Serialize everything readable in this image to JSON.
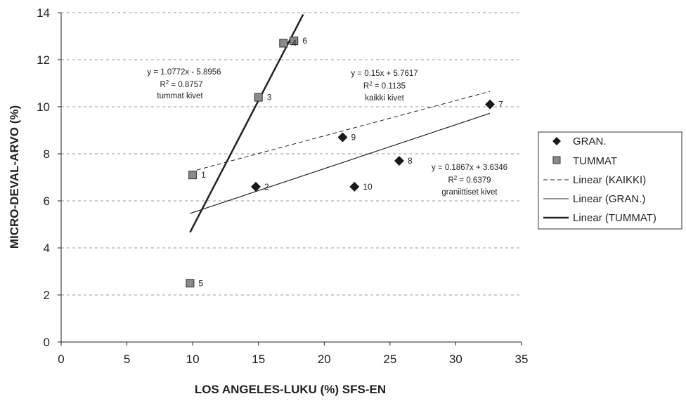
{
  "chart_data": {
    "type": "scatter",
    "xlabel": "LOS ANGELES-LUKU (%) SFS-EN",
    "ylabel": "MICRO-DEVAL-ARVO (%)",
    "xlim": [
      0,
      35
    ],
    "ylim": [
      0,
      14
    ],
    "xticks": [
      "0",
      "5",
      "10",
      "15",
      "20",
      "25",
      "30",
      "35"
    ],
    "yticks": [
      "0",
      "2",
      "4",
      "6",
      "8",
      "10",
      "12",
      "14"
    ],
    "grid": "horizontal dashed",
    "legend_position": "right",
    "series": [
      {
        "name": "GRAN.",
        "marker": "diamond",
        "points": [
          {
            "x": 14.8,
            "y": 6.6,
            "label": "2"
          },
          {
            "x": 32.6,
            "y": 10.1,
            "label": "7"
          },
          {
            "x": 25.7,
            "y": 7.7,
            "label": "8"
          },
          {
            "x": 21.4,
            "y": 8.7,
            "label": "9"
          },
          {
            "x": 22.3,
            "y": 6.6,
            "label": "10"
          }
        ]
      },
      {
        "name": "TUMMAT",
        "marker": "square",
        "points": [
          {
            "x": 10.0,
            "y": 7.1,
            "label": "1"
          },
          {
            "x": 15.0,
            "y": 10.4,
            "label": "3"
          },
          {
            "x": 16.9,
            "y": 12.7,
            "label": "4"
          },
          {
            "x": 9.8,
            "y": 2.5,
            "label": "5"
          },
          {
            "x": 17.7,
            "y": 12.8,
            "label": "6"
          }
        ]
      }
    ],
    "trendlines": [
      {
        "name": "Linear (KAIKKI)",
        "style": "dashed",
        "slope": 0.15,
        "intercept": 5.7617,
        "x_range": [
          9.8,
          32.6
        ]
      },
      {
        "name": "Linear (GRAN.)",
        "style": "thin",
        "slope": 0.1867,
        "intercept": 3.6346,
        "x_range": [
          9.8,
          32.6
        ]
      },
      {
        "name": "Linear (TUMMAT)",
        "style": "thick",
        "slope": 1.0772,
        "intercept": -5.8956,
        "x_range": [
          9.8,
          18.4
        ]
      }
    ],
    "annotations": [
      {
        "id": "tummat",
        "equation": "y = 1.0772x - 5.8956",
        "r2_value": " = 0.8757",
        "note": "tummat kivet"
      },
      {
        "id": "kaikki",
        "equation": "y = 0.15x + 5.7617",
        "r2_value": " = 0.1135",
        "note": "kaikki kivet"
      },
      {
        "id": "gran",
        "equation": "y = 0.1867x + 3.6346",
        "r2_value": " = 0.6379",
        "note": "graniittiset kivet"
      }
    ],
    "r2_base": "R",
    "r2_sup": "2"
  },
  "colors": {
    "marker": "#1a1a1a",
    "square_fill": "#8a8a8a",
    "grid": "#9a9a9a",
    "line": "#222222"
  }
}
